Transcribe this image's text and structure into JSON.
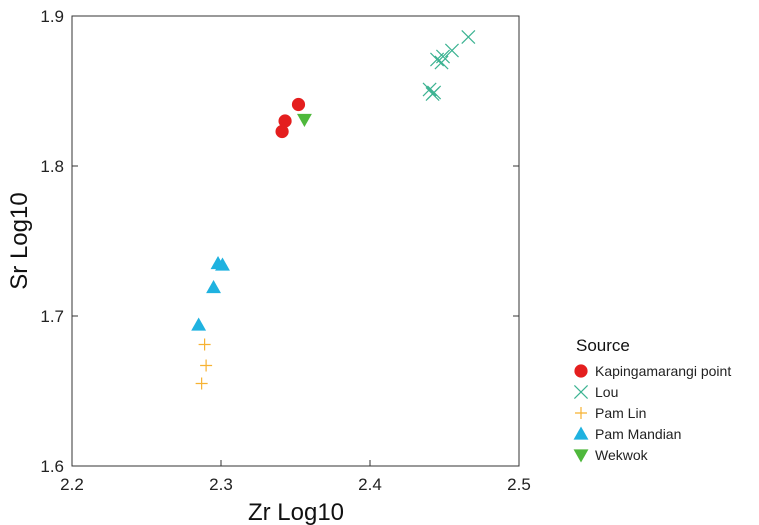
{
  "chart_data": {
    "type": "scatter",
    "title": "",
    "xlabel": "Zr Log10",
    "ylabel": "Sr Log10",
    "xlim": [
      2.2,
      2.5
    ],
    "ylim": [
      1.6,
      1.9
    ],
    "xticks": [
      2.2,
      2.3,
      2.4,
      2.5
    ],
    "yticks": [
      1.6,
      1.7,
      1.8,
      1.9
    ],
    "xtick_labels": [
      "2.2",
      "2.3",
      "2.4",
      "2.5"
    ],
    "ytick_labels": [
      "1.6",
      "1.7",
      "1.8",
      "1.9"
    ],
    "grid": false,
    "legend": {
      "title": "Source",
      "position": "right"
    },
    "series": [
      {
        "name": "Kapingamarangi point",
        "marker": "circle",
        "color": "#e41e1e",
        "points": [
          {
            "x": 2.341,
            "y": 1.823
          },
          {
            "x": 2.343,
            "y": 1.83
          },
          {
            "x": 2.352,
            "y": 1.841
          }
        ]
      },
      {
        "name": "Lou",
        "marker": "x",
        "color": "#3cb392",
        "points": [
          {
            "x": 2.44,
            "y": 1.851
          },
          {
            "x": 2.442,
            "y": 1.848
          },
          {
            "x": 2.443,
            "y": 1.849
          },
          {
            "x": 2.445,
            "y": 1.871
          },
          {
            "x": 2.448,
            "y": 1.869
          },
          {
            "x": 2.449,
            "y": 1.873
          },
          {
            "x": 2.455,
            "y": 1.877
          },
          {
            "x": 2.466,
            "y": 1.886
          }
        ]
      },
      {
        "name": "Pam Lin",
        "marker": "plus",
        "color": "#f7b232",
        "points": [
          {
            "x": 2.287,
            "y": 1.655
          },
          {
            "x": 2.29,
            "y": 1.667
          },
          {
            "x": 2.289,
            "y": 1.681
          }
        ]
      },
      {
        "name": "Pam Mandian",
        "marker": "triangle-up",
        "color": "#1fb2e0",
        "points": [
          {
            "x": 2.285,
            "y": 1.694
          },
          {
            "x": 2.295,
            "y": 1.719
          },
          {
            "x": 2.298,
            "y": 1.735
          },
          {
            "x": 2.301,
            "y": 1.734
          }
        ]
      },
      {
        "name": "Wekwok",
        "marker": "triangle-down",
        "color": "#4fb83c",
        "points": [
          {
            "x": 2.356,
            "y": 1.831
          }
        ]
      }
    ]
  }
}
